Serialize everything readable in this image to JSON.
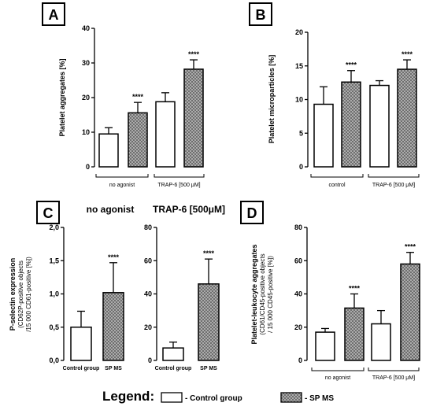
{
  "legend": {
    "title": "Legend:",
    "items": [
      {
        "label": "- Control group",
        "pattern": "white"
      },
      {
        "label": "- SP MS",
        "pattern": "hatched"
      }
    ]
  },
  "colors": {
    "control": "#ffffff",
    "sp_ms_fill": "#b8b8b8",
    "stroke": "#000000"
  },
  "chart_data": [
    {
      "panel": "A",
      "type": "bar",
      "ylabel": "Platelet aggregates [%]",
      "ylim": [
        0,
        40
      ],
      "yticks": [
        0,
        10,
        20,
        30,
        40
      ],
      "groups": [
        "no agonist",
        "TRAP-6 [500 μM]"
      ],
      "series": [
        {
          "name": "Control group",
          "values": [
            9.5,
            18.8
          ],
          "errors": [
            1.8,
            2.6
          ]
        },
        {
          "name": "SP MS",
          "values": [
            15.6,
            28.2
          ],
          "errors": [
            3.0,
            2.7
          ],
          "significance": [
            "****",
            "****"
          ]
        }
      ]
    },
    {
      "panel": "B",
      "type": "bar",
      "ylabel": "Platelet microparticles [%]",
      "ylim": [
        0,
        20
      ],
      "yticks": [
        0,
        5,
        10,
        15,
        20
      ],
      "groups": [
        "control",
        "TRAP-6 [500 μM]"
      ],
      "series": [
        {
          "name": "Control group",
          "values": [
            9.3,
            12.1
          ],
          "errors": [
            2.6,
            0.7
          ]
        },
        {
          "name": "SP MS",
          "values": [
            12.6,
            14.5
          ],
          "errors": [
            1.7,
            1.4
          ],
          "significance": [
            "****",
            "****"
          ]
        }
      ]
    },
    {
      "panel": "C",
      "subtitle": "no agonist",
      "type": "bar",
      "ylabel": "P-selectin expression",
      "ylabel_sub": [
        "(CD62P-positive objects",
        "/15 000 CD61-positive [%])"
      ],
      "ylim": [
        0,
        2.0
      ],
      "yticks": [
        "0,0",
        "0,5",
        "1,0",
        "1,5",
        "2,0"
      ],
      "categories": [
        "Control group",
        "SP MS"
      ],
      "values": [
        0.5,
        1.02
      ],
      "errors": [
        0.24,
        0.45
      ],
      "significance": [
        null,
        "****"
      ]
    },
    {
      "panel": "C2",
      "subtitle": "TRAP-6 [500μM]",
      "type": "bar",
      "ylim": [
        0,
        80
      ],
      "yticks": [
        0,
        20,
        40,
        60,
        80
      ],
      "categories": [
        "Control group",
        "SP MS"
      ],
      "values": [
        7.5,
        46.0
      ],
      "errors": [
        3.5,
        15.0
      ],
      "significance": [
        null,
        "****"
      ]
    },
    {
      "panel": "D",
      "type": "bar",
      "ylabel": "Platelet-leukocyte aggregates",
      "ylabel_sub": [
        "(CD61/CD45-positive objects",
        "/ 15 000 CD45-positive [%])"
      ],
      "ylim": [
        0,
        80
      ],
      "yticks": [
        0,
        20,
        40,
        60,
        80
      ],
      "groups": [
        "no agonist",
        "TRAP-6 [500 μM]"
      ],
      "series": [
        {
          "name": "Control group",
          "values": [
            17.0,
            22.0
          ],
          "errors": [
            2.2,
            8.0
          ]
        },
        {
          "name": "SP MS",
          "values": [
            31.5,
            58.0
          ],
          "errors": [
            8.5,
            7.0
          ],
          "significance": [
            "****",
            "****"
          ]
        }
      ]
    }
  ]
}
